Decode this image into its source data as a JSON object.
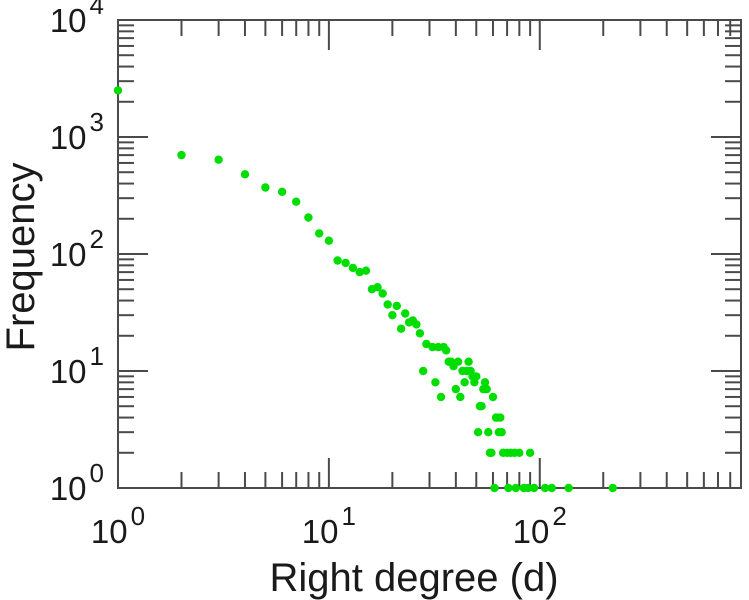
{
  "chart_data": {
    "type": "scatter",
    "title": "",
    "xlabel": "Right degree (d)",
    "ylabel": "Frequency",
    "x_scale": "log",
    "y_scale": "log",
    "xlim": [
      1,
      900
    ],
    "ylim": [
      1,
      10000
    ],
    "grid": false,
    "legend": "none",
    "tick_base": "10",
    "x_ticks": [
      {
        "value": 1,
        "exponent": "0"
      },
      {
        "value": 10,
        "exponent": "1"
      },
      {
        "value": 100,
        "exponent": "2"
      }
    ],
    "y_ticks": [
      {
        "value": 1,
        "exponent": "0"
      },
      {
        "value": 10,
        "exponent": "1"
      },
      {
        "value": 100,
        "exponent": "2"
      },
      {
        "value": 1000,
        "exponent": "3"
      },
      {
        "value": 10000,
        "exponent": "4"
      }
    ],
    "marker": {
      "shape": "circle",
      "color": "#00dd00",
      "radius": 4.2
    },
    "frame_color": "#4a4a4a",
    "label_color": "#1a1a1a",
    "points": [
      [
        1,
        2500
      ],
      [
        2,
        700
      ],
      [
        3,
        640
      ],
      [
        4,
        480
      ],
      [
        5,
        370
      ],
      [
        6,
        340
      ],
      [
        7,
        280
      ],
      [
        8,
        205
      ],
      [
        9,
        150
      ],
      [
        10,
        130
      ],
      [
        11,
        88
      ],
      [
        12,
        84
      ],
      [
        13,
        76
      ],
      [
        14,
        70
      ],
      [
        15,
        72
      ],
      [
        16,
        50
      ],
      [
        17,
        52
      ],
      [
        18,
        46
      ],
      [
        19,
        37
      ],
      [
        20,
        30
      ],
      [
        21,
        36
      ],
      [
        22,
        23
      ],
      [
        23,
        31
      ],
      [
        24,
        26
      ],
      [
        25,
        27
      ],
      [
        26,
        25
      ],
      [
        27,
        21
      ],
      [
        28,
        10
      ],
      [
        29,
        17
      ],
      [
        31,
        16
      ],
      [
        32,
        8
      ],
      [
        33,
        16
      ],
      [
        34,
        6
      ],
      [
        35,
        16
      ],
      [
        36,
        15
      ],
      [
        37,
        12
      ],
      [
        38,
        12
      ],
      [
        39,
        11
      ],
      [
        40,
        7
      ],
      [
        41,
        12
      ],
      [
        42,
        6
      ],
      [
        43,
        10
      ],
      [
        44,
        8
      ],
      [
        45,
        10
      ],
      [
        46,
        12
      ],
      [
        47,
        10
      ],
      [
        48,
        9
      ],
      [
        49,
        8
      ],
      [
        50,
        9
      ],
      [
        51,
        3
      ],
      [
        52,
        5
      ],
      [
        53,
        5
      ],
      [
        54,
        7
      ],
      [
        55,
        8
      ],
      [
        56,
        7
      ],
      [
        57,
        3
      ],
      [
        58,
        2
      ],
      [
        59,
        2
      ],
      [
        60,
        6
      ],
      [
        61,
        1
      ],
      [
        62,
        4
      ],
      [
        63,
        4
      ],
      [
        64,
        3
      ],
      [
        65,
        4
      ],
      [
        66,
        3
      ],
      [
        67,
        2
      ],
      [
        70,
        2
      ],
      [
        71,
        1
      ],
      [
        73,
        2
      ],
      [
        76,
        2
      ],
      [
        77,
        1
      ],
      [
        80,
        2
      ],
      [
        84,
        1
      ],
      [
        88,
        1
      ],
      [
        90,
        2
      ],
      [
        94,
        1
      ],
      [
        106,
        1
      ],
      [
        114,
        1
      ],
      [
        137,
        1
      ],
      [
        222,
        1
      ]
    ]
  }
}
